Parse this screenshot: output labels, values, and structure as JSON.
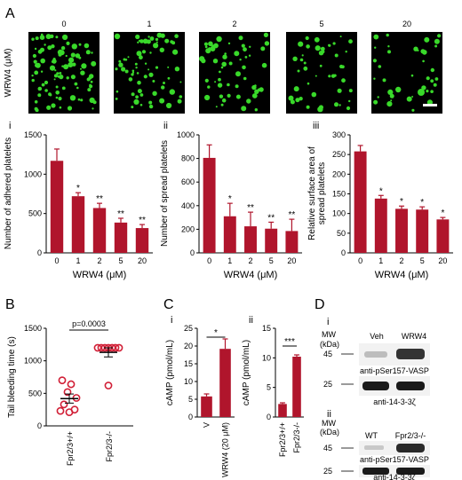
{
  "panels": {
    "A": "A",
    "B": "B",
    "C": "C",
    "D": "D",
    "Ai": "i",
    "Aii": "ii",
    "Aiii": "iii",
    "Ci": "i",
    "Cii": "ii",
    "Di": "i",
    "Dii": "ii"
  },
  "micrographs": {
    "y_label": "WRW4 (μM)",
    "concentrations": [
      "0",
      "1",
      "2",
      "5",
      "20"
    ],
    "colors": {
      "background": "#000000",
      "platelet": "#39d92a",
      "scale_bar": "#ffffff"
    }
  },
  "colors": {
    "bar": "#b0152c",
    "dots": "#d11f36"
  },
  "blot": {
    "mw_label": "MW",
    "kda_label": "(kDa)",
    "i": {
      "col1": "Veh",
      "col2": "WRW4",
      "mw1": "45",
      "mw2": "25",
      "label1": "anti-pSer157-VASP",
      "label2": "anti-14-3-3ζ"
    },
    "ii": {
      "col1": "WT",
      "col2": "Fpr2/3-/-",
      "mw1": "45",
      "mw2": "25",
      "label1": "anti-pSer157-VASP",
      "label2": "anti-14-3-3ζ"
    }
  },
  "chart_data": [
    {
      "id": "A-i",
      "type": "bar",
      "ylabel": "Number of adhered platelets",
      "xlabel": "WRW4 (μM)",
      "categories": [
        "0",
        "1",
        "2",
        "5",
        "20"
      ],
      "values": [
        1170,
        720,
        570,
        385,
        315
      ],
      "errors": [
        150,
        45,
        60,
        55,
        45
      ],
      "significance": [
        "",
        "*",
        "**",
        "**",
        "**"
      ],
      "ylim": [
        0,
        1500
      ],
      "yticks": [
        0,
        500,
        1000,
        1500
      ]
    },
    {
      "id": "A-ii",
      "type": "bar",
      "ylabel": "Number of spread platelets",
      "xlabel": "WRW4 (μM)",
      "categories": [
        "0",
        "1",
        "2",
        "5",
        "20"
      ],
      "values": [
        805,
        310,
        225,
        205,
        185
      ],
      "errors": [
        110,
        110,
        120,
        55,
        100
      ],
      "significance": [
        "",
        "*",
        "**",
        "**",
        "**"
      ],
      "ylim": [
        0,
        1000
      ],
      "yticks": [
        0,
        200,
        400,
        600,
        800,
        1000
      ]
    },
    {
      "id": "A-iii",
      "type": "bar",
      "ylabel": "Relative surface area of spread platelets",
      "xlabel": "WRW4 (μM)",
      "categories": [
        "0",
        "1",
        "2",
        "5",
        "20"
      ],
      "values": [
        258,
        138,
        112,
        110,
        85
      ],
      "errors": [
        15,
        8,
        7,
        7,
        5
      ],
      "significance": [
        "",
        "*",
        "*",
        "*",
        "*"
      ],
      "ylim": [
        0,
        300
      ],
      "yticks": [
        0,
        50,
        100,
        150,
        200,
        250,
        300
      ]
    },
    {
      "id": "B",
      "type": "scatter",
      "ylabel": "Tail bleeding time (s)",
      "categories": [
        "Fpr2/3+/+",
        "Fpr2/3-/-"
      ],
      "groups": [
        {
          "name": "Fpr2/3+/+",
          "values": [
            700,
            640,
            520,
            430,
            330,
            250,
            230,
            210
          ],
          "mean": 420,
          "sem": 70
        },
        {
          "name": "Fpr2/3-/-",
          "values": [
            1200,
            1200,
            1200,
            1200,
            1200,
            1200,
            1200,
            620
          ],
          "mean": 1130,
          "sem": 70
        }
      ],
      "annotation": "p=0.0003",
      "ylim": [
        0,
        1500
      ],
      "yticks": [
        0,
        500,
        1000,
        1500
      ]
    },
    {
      "id": "C-i",
      "type": "bar",
      "ylabel": "cAMP (pmol/mL)",
      "categories": [
        "V",
        "WRW4 (20 μM)"
      ],
      "values": [
        5.8,
        19.2
      ],
      "errors": [
        0.7,
        2.8
      ],
      "significance": "*",
      "ylim": [
        0,
        25
      ],
      "yticks": [
        0,
        5,
        10,
        15,
        20,
        25
      ]
    },
    {
      "id": "C-ii",
      "type": "bar",
      "ylabel": "cAMP (pmol/mL)",
      "categories": [
        "Fpr2/3+/+",
        "Fpr2/3-/-"
      ],
      "values": [
        2.2,
        10.2
      ],
      "errors": [
        0.2,
        0.3
      ],
      "significance": "***",
      "ylim": [
        0,
        15
      ],
      "yticks": [
        0,
        5,
        10,
        15
      ]
    }
  ]
}
